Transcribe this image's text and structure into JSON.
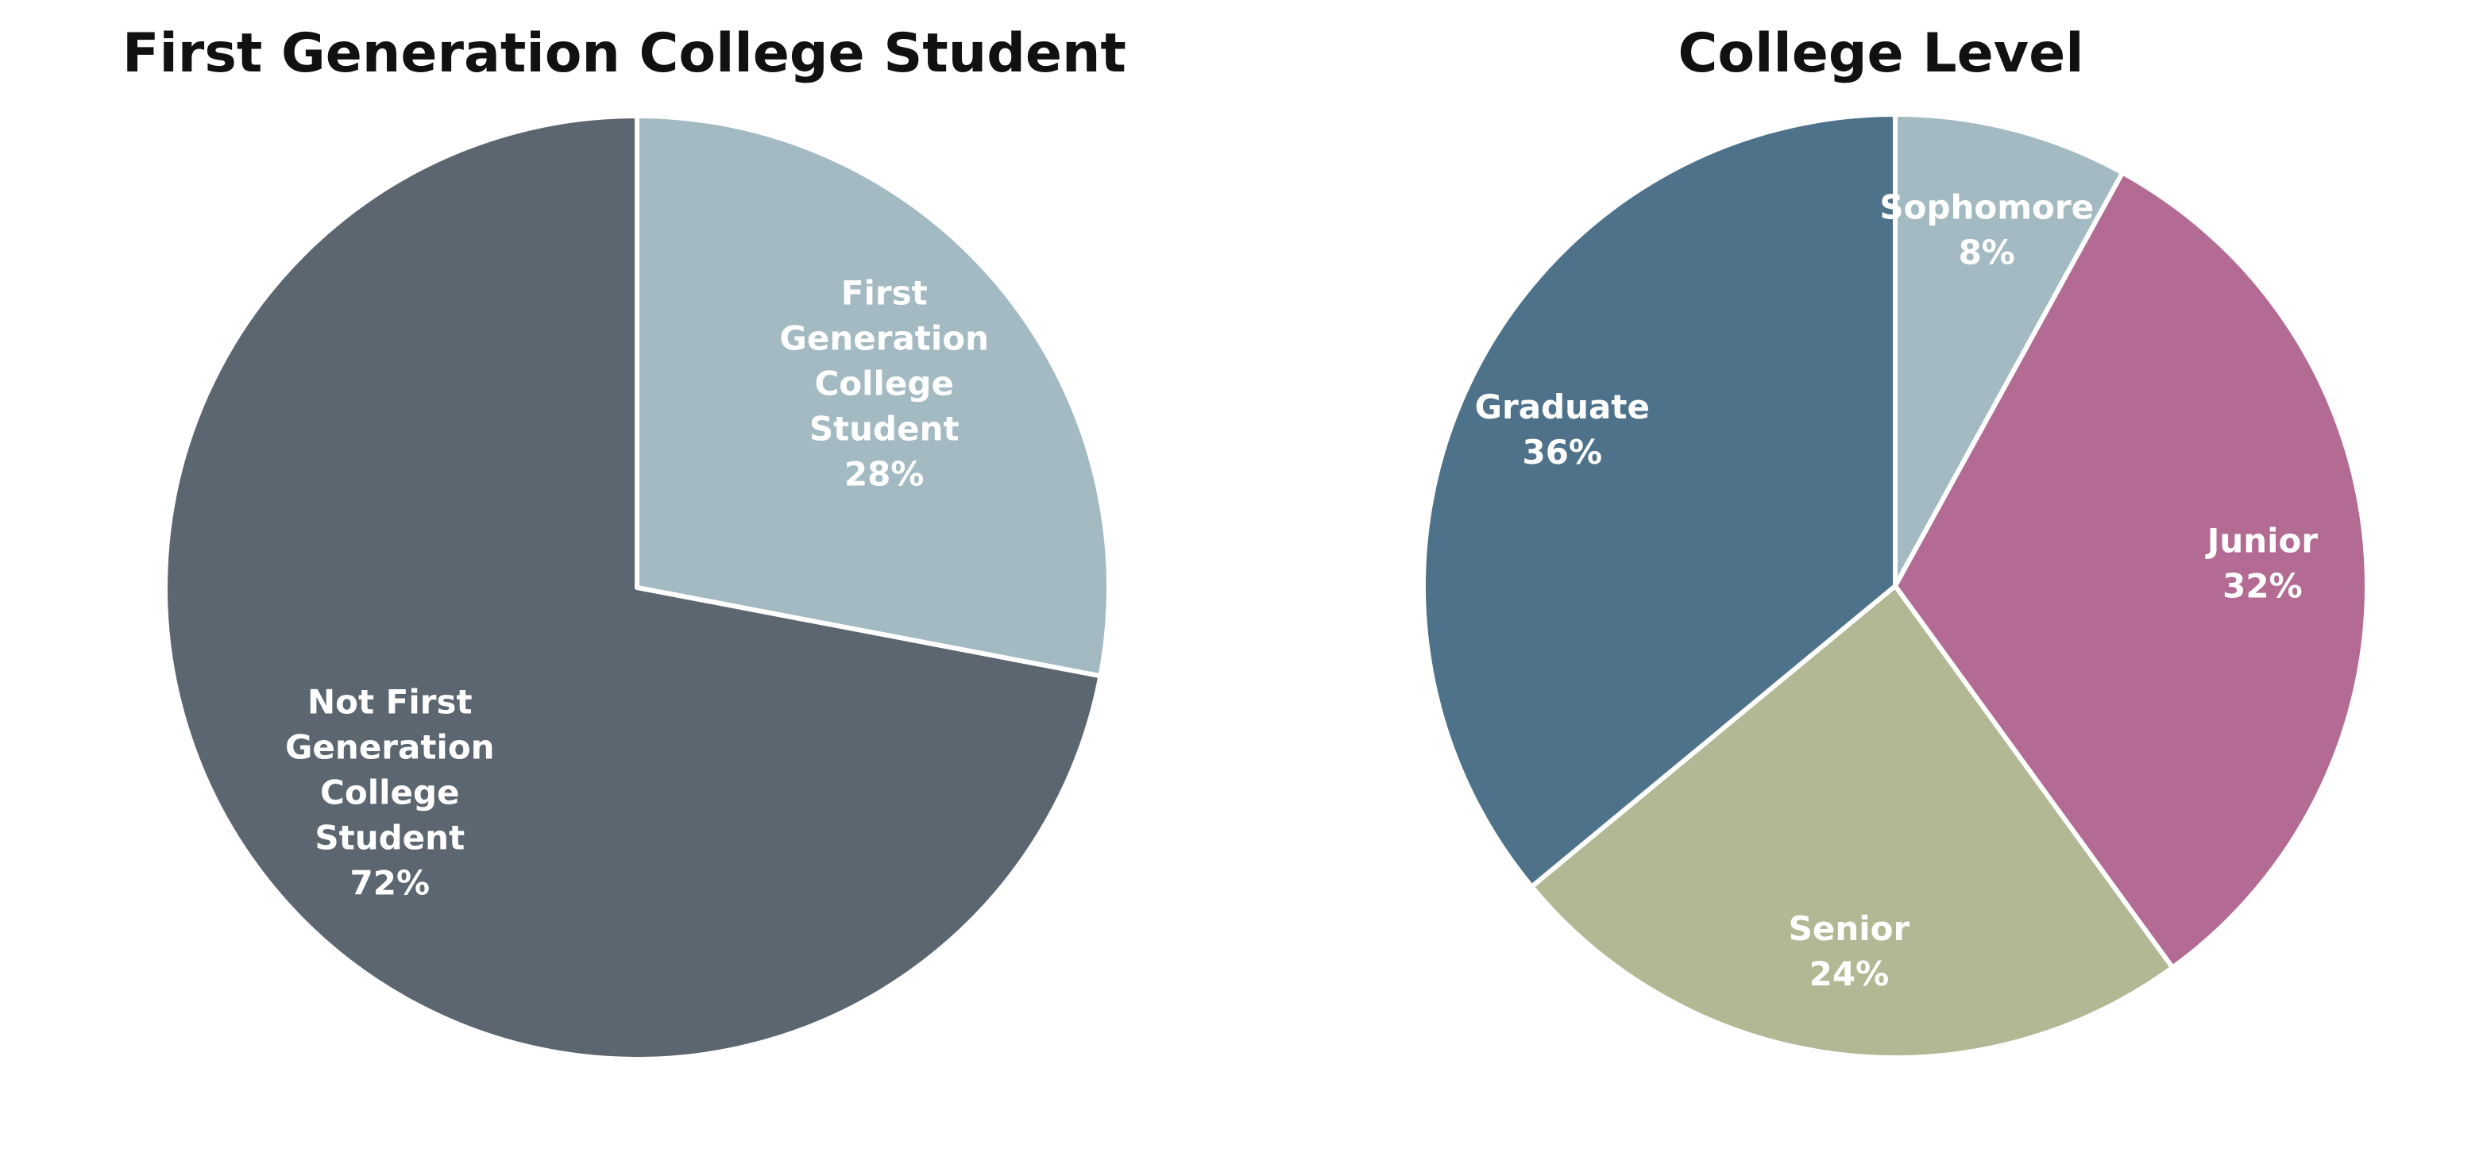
{
  "chart_data": [
    {
      "type": "pie",
      "title": "First Generation College Student",
      "slices": [
        {
          "label_lines": [
            "First",
            "Generation",
            "College",
            "Student"
          ],
          "percent_label": "28%",
          "value": 28,
          "color": "#a3bac2"
        },
        {
          "label_lines": [
            "Not First",
            "Generation",
            "College",
            "Student"
          ],
          "percent_label": "72%",
          "value": 72,
          "color": "#5c6670"
        }
      ],
      "legend": "none",
      "start_angle_deg": 0,
      "direction": "clockwise"
    },
    {
      "type": "pie",
      "title": "College Level",
      "slices": [
        {
          "label_lines": [
            "Sophomore"
          ],
          "percent_label": "8%",
          "value": 8,
          "color": "#a3bac2"
        },
        {
          "label_lines": [
            "Junior"
          ],
          "percent_label": "32%",
          "value": 32,
          "color": "#b36b93"
        },
        {
          "label_lines": [
            "Senior"
          ],
          "percent_label": "24%",
          "value": 24,
          "color": "#b2b794"
        },
        {
          "label_lines": [
            "Graduate"
          ],
          "percent_label": "36%",
          "value": 36,
          "color": "#4f728b"
        }
      ],
      "legend": "none",
      "start_angle_deg": 0,
      "direction": "clockwise"
    }
  ]
}
